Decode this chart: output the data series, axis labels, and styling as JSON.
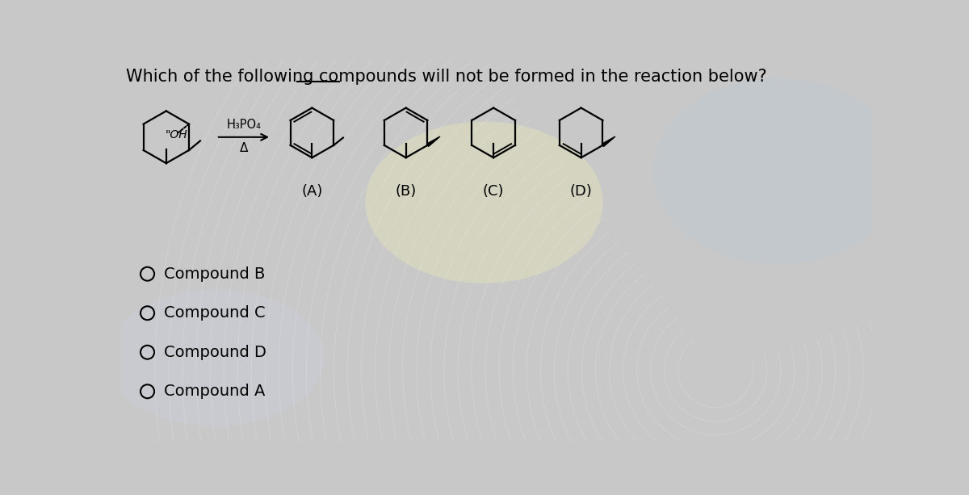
{
  "title_p1": "Which of the following compounds ",
  "title_underlined": "will not",
  "title_p2": " be formed in the reaction below?",
  "reagent": "H₃PO₄",
  "condition": "Δ",
  "product_labels": [
    "(A)",
    "(B)",
    "(C)",
    "(D)"
  ],
  "choices": [
    "Compound B",
    "Compound C",
    "Compound D",
    "Compound A"
  ],
  "bg_color": "#c8c8c8",
  "text_color": "#000000",
  "title_fontsize": 15,
  "label_fontsize": 13,
  "choice_fontsize": 14,
  "fig_width": 12.0,
  "fig_height": 6.13
}
